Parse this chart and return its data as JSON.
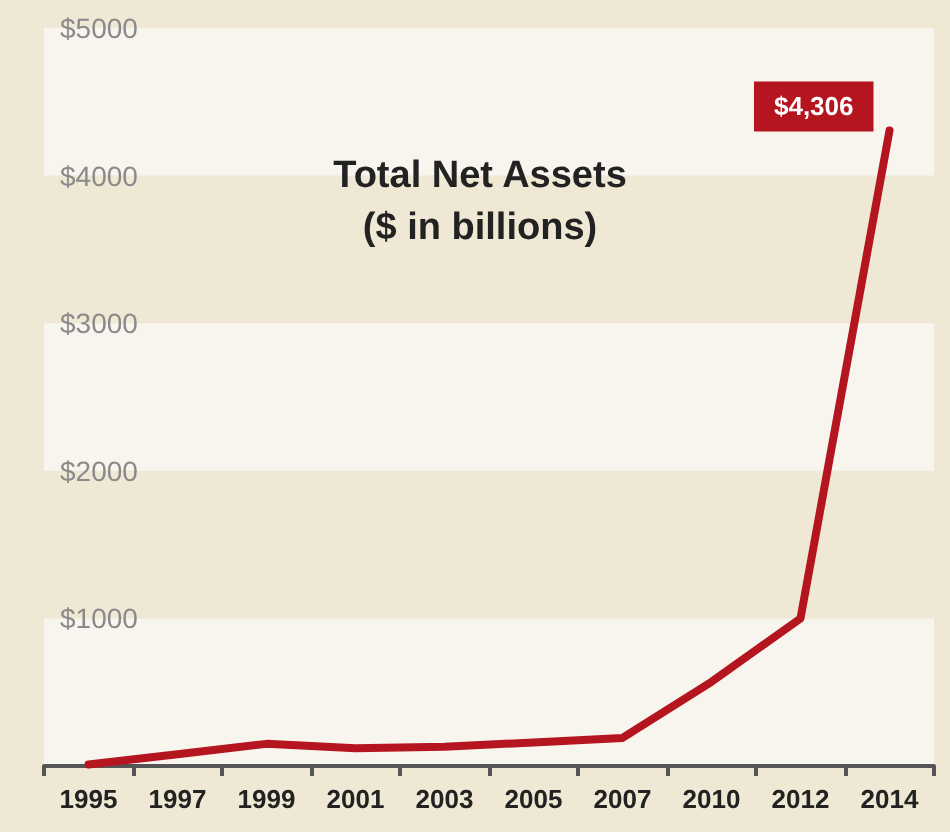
{
  "chart_data": {
    "type": "line",
    "title": "Total Net Assets\n($ in billions)",
    "categories": [
      "1995",
      "1997",
      "1999",
      "2001",
      "2003",
      "2005",
      "2007",
      "2010",
      "2012",
      "2014"
    ],
    "series": [
      {
        "color": "#b5151f",
        "values": [
          10,
          80,
          150,
          120,
          130,
          160,
          190,
          570,
          1000,
          4306
        ],
        "value_labels": [
          null,
          null,
          null,
          null,
          null,
          null,
          null,
          null,
          null,
          "$4,306"
        ]
      }
    ],
    "ylim": [
      0,
      5000
    ],
    "yticks": [
      {
        "value": 0,
        "label": null
      },
      {
        "value": 1000,
        "label": "$1000"
      },
      {
        "value": 2000,
        "label": "$2000"
      },
      {
        "value": 3000,
        "label": "$3000"
      },
      {
        "value": 4000,
        "label": "$4000"
      },
      {
        "value": 5000,
        "label": "$5000"
      }
    ],
    "bands": [
      {
        "axis": "y",
        "from": 1000,
        "to": 2000,
        "color": "#efe8d4"
      },
      {
        "axis": "y",
        "from": 3000,
        "to": 4000,
        "color": "#efe8d4"
      }
    ],
    "marker": "none",
    "line_style": "solid"
  }
}
